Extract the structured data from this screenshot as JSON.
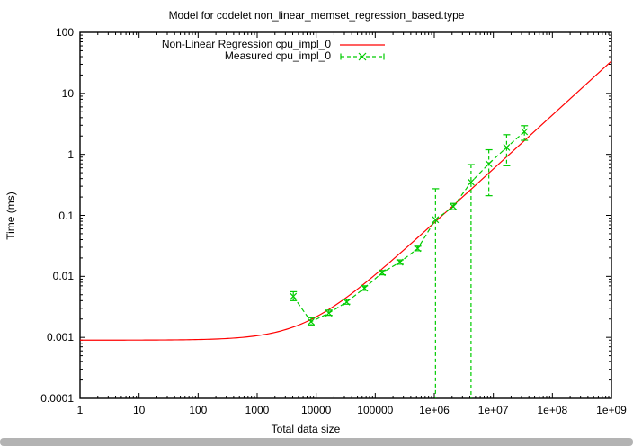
{
  "chart_data": {
    "type": "line",
    "title": "Model for codelet non_linear_memset_regression_based.type",
    "xlabel": "Total data size",
    "ylabel": "Time (ms)",
    "x_scale": "log",
    "y_scale": "log",
    "xlim": [
      1,
      1000000000
    ],
    "ylim": [
      0.0001,
      100
    ],
    "x_ticks": [
      "1",
      "10",
      "100",
      "1000",
      "10000",
      "100000",
      "1e+06",
      "1e+07",
      "1e+08",
      "1e+09"
    ],
    "x_tick_decades": [
      0,
      1,
      2,
      3,
      4,
      5,
      6,
      7,
      8,
      9
    ],
    "y_ticks": [
      "0.0001",
      "0.001",
      "0.01",
      "0.1",
      "1",
      "10",
      "100"
    ],
    "y_tick_decades": [
      -4,
      -3,
      -2,
      -1,
      0,
      1,
      2
    ],
    "grid": false,
    "legend_position": "top-left-inside",
    "legend": [
      {
        "label": "Non-Linear Regression cpu_impl_0",
        "color": "#ff0000",
        "style": "solid-line"
      },
      {
        "label": "Measured cpu_impl_0",
        "color": "#00cc00",
        "style": "dashed-line-x-errorbars"
      }
    ],
    "series": [
      {
        "name": "Non-Linear Regression cpu_impl_0",
        "type": "regression-curve",
        "color": "#ff0000",
        "model": "time_ms = a + b * size^p",
        "a": 0.0009,
        "b": 3.67e-07,
        "p": 0.885,
        "x_range": [
          1,
          1000000000
        ]
      },
      {
        "name": "Measured cpu_impl_0",
        "type": "points-with-errorbars",
        "color": "#00cc00",
        "points": [
          {
            "x": 4096,
            "y": 0.0047,
            "ylow": 0.004,
            "yhigh": 0.0056
          },
          {
            "x": 8192,
            "y": 0.0018,
            "ylow": 0.0016,
            "yhigh": 0.0021
          },
          {
            "x": 16384,
            "y": 0.0025,
            "ylow": 0.0023,
            "yhigh": 0.0028
          },
          {
            "x": 32768,
            "y": 0.0038,
            "ylow": 0.0035,
            "yhigh": 0.0042
          },
          {
            "x": 65536,
            "y": 0.0064,
            "ylow": 0.0059,
            "yhigh": 0.007
          },
          {
            "x": 131072,
            "y": 0.0115,
            "ylow": 0.0106,
            "yhigh": 0.0125
          },
          {
            "x": 262144,
            "y": 0.0171,
            "ylow": 0.0158,
            "yhigh": 0.0186
          },
          {
            "x": 524288,
            "y": 0.0286,
            "ylow": 0.0263,
            "yhigh": 0.0312
          },
          {
            "x": 1048576,
            "y": 0.085,
            "ylow": 0.0001,
            "yhigh": 0.273,
            "low_clipped": true
          },
          {
            "x": 2097152,
            "y": 0.139,
            "ylow": 0.124,
            "yhigh": 0.157
          },
          {
            "x": 4194304,
            "y": 0.35,
            "ylow": 0.0001,
            "yhigh": 0.68,
            "low_clipped": true
          },
          {
            "x": 8388608,
            "y": 0.7,
            "ylow": 0.21,
            "yhigh": 1.19
          },
          {
            "x": 16777216,
            "y": 1.3,
            "ylow": 0.65,
            "yhigh": 2.1
          },
          {
            "x": 33554432,
            "y": 2.35,
            "ylow": 1.7,
            "yhigh": 2.95
          }
        ]
      }
    ]
  },
  "colors": {
    "regression_line": "#ff0000",
    "measured_line": "#00cc00",
    "frame": "#000000",
    "background": "#ffffff",
    "scrollbar": "#b3b3b3"
  }
}
